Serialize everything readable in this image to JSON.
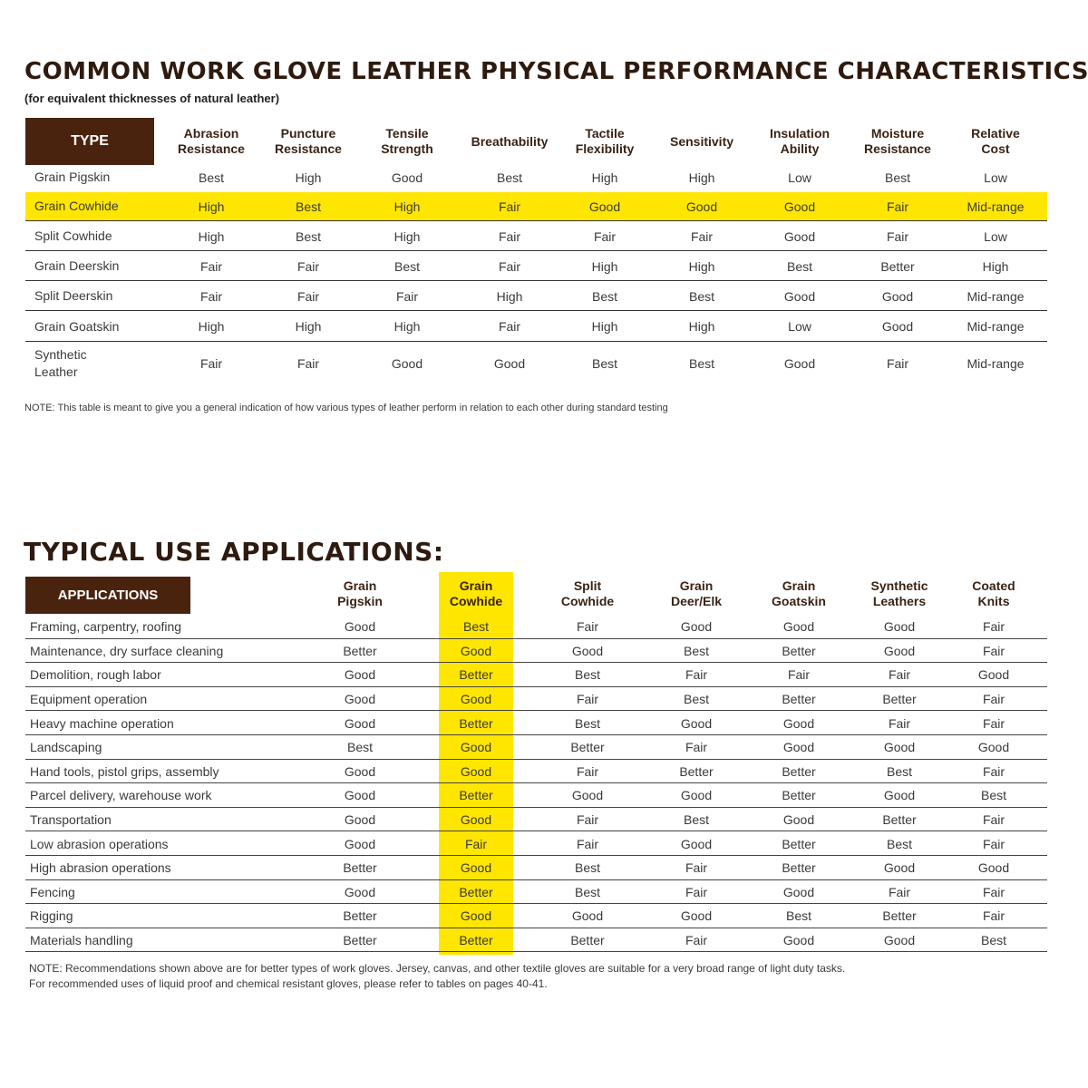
{
  "performance": {
    "title": "COMMON WORK GLOVE LEATHER PHYSICAL PERFORMANCE CHARACTERISTICS:",
    "subtitle": "(for equivalent thicknesses of natural leather)",
    "headers": [
      "TYPE",
      "Abrasion\nResistance",
      "Puncture\nResistance",
      "Tensile\nStrength",
      "Breathability",
      "Tactile\nFlexibility",
      "Sensitivity",
      "Insulation\nAbility",
      "Moisture\nResistance",
      "Relative\nCost"
    ],
    "rows": [
      [
        "Grain Pigskin",
        "Best",
        "High",
        "Good",
        "Best",
        "High",
        "High",
        "Low",
        "Best",
        "Low"
      ],
      [
        "Grain Cowhide",
        "High",
        "Best",
        "High",
        "Fair",
        "Good",
        "Good",
        "Good",
        "Fair",
        "Mid-range"
      ],
      [
        "Split Cowhide",
        "High",
        "Best",
        "High",
        "Fair",
        "Fair",
        "Fair",
        "Good",
        "Fair",
        "Low"
      ],
      [
        "Grain Deerskin",
        "Fair",
        "Fair",
        "Best",
        "Fair",
        "High",
        "High",
        "Best",
        "Better",
        "High"
      ],
      [
        "Split Deerskin",
        "Fair",
        "Fair",
        "Fair",
        "High",
        "Best",
        "Best",
        "Good",
        "Good",
        "Mid-range"
      ],
      [
        "Grain Goatskin",
        "High",
        "High",
        "High",
        "Fair",
        "High",
        "High",
        "Low",
        "Good",
        "Mid-range"
      ],
      [
        "Synthetic\nLeather",
        "Fair",
        "Fair",
        "Good",
        "Good",
        "Best",
        "Best",
        "Good",
        "Fair",
        "Mid-range"
      ]
    ],
    "note": "NOTE: This table is meant to give you a general indication of how various types of leather perform in relation to each other during standard testing"
  },
  "applications": {
    "title": "TYPICAL USE APPLICATIONS:",
    "headers": [
      "APPLICATIONS",
      "Grain\nPigskin",
      "Grain\nCowhide",
      "Split\nCowhide",
      "Grain\nDeer/Elk",
      "Grain\nGoatskin",
      "Synthetic\nLeathers",
      "Coated\nKnits"
    ],
    "rows": [
      [
        "Framing, carpentry, roofing",
        "Good",
        "Best",
        "Fair",
        "Good",
        "Good",
        "Good",
        "Fair"
      ],
      [
        "Maintenance, dry surface cleaning",
        "Better",
        "Good",
        "Good",
        "Best",
        "Better",
        "Good",
        "Fair"
      ],
      [
        "Demolition, rough labor",
        "Good",
        "Better",
        "Best",
        "Fair",
        "Fair",
        "Fair",
        "Good"
      ],
      [
        "Equipment operation",
        "Good",
        "Good",
        "Fair",
        "Best",
        "Better",
        "Better",
        "Fair"
      ],
      [
        "Heavy machine operation",
        "Good",
        "Better",
        "Best",
        "Good",
        "Good",
        "Fair",
        "Fair"
      ],
      [
        "Landscaping",
        "Best",
        "Good",
        "Better",
        "Fair",
        "Good",
        "Good",
        "Good"
      ],
      [
        "Hand tools, pistol grips, assembly",
        "Good",
        "Good",
        "Fair",
        "Better",
        "Better",
        "Best",
        "Fair"
      ],
      [
        "Parcel delivery, warehouse work",
        "Good",
        "Better",
        "Good",
        "Good",
        "Better",
        "Good",
        "Best"
      ],
      [
        "Transportation",
        "Good",
        "Good",
        "Fair",
        "Best",
        "Good",
        "Better",
        "Fair"
      ],
      [
        "Low abrasion operations",
        "Good",
        "Fair",
        "Fair",
        "Good",
        "Better",
        "Best",
        "Fair"
      ],
      [
        "High abrasion operations",
        "Better",
        "Good",
        "Best",
        "Fair",
        "Better",
        "Good",
        "Good"
      ],
      [
        "Fencing",
        "Good",
        "Better",
        "Best",
        "Fair",
        "Good",
        "Fair",
        "Fair"
      ],
      [
        "Rigging",
        "Better",
        "Good",
        "Good",
        "Good",
        "Best",
        "Better",
        "Fair"
      ],
      [
        "Materials handling",
        "Better",
        "Better",
        "Better",
        "Fair",
        "Good",
        "Good",
        "Best"
      ]
    ],
    "note": [
      "NOTE: Recommendations shown above are for better types of work gloves. Jersey, canvas, and other textile gloves are suitable for a very broad range of light duty tasks.",
      "For recommended uses of liquid proof and chemical resistant gloves, please refer to tables on pages 40-41."
    ]
  }
}
